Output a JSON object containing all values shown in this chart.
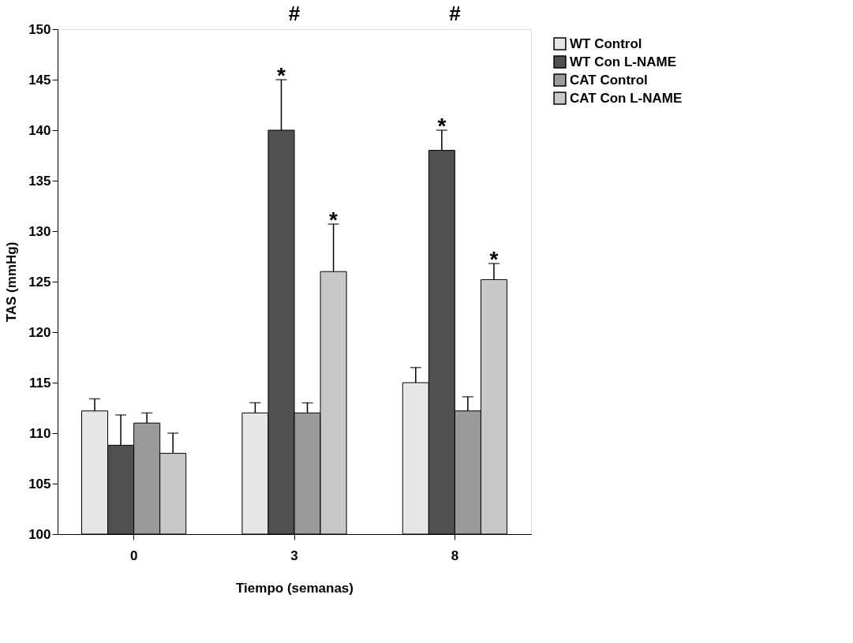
{
  "chart_data": {
    "type": "bar",
    "xlabel": "Tiempo (semanas)",
    "ylabel": "TAS (mmHg)",
    "categories": [
      "0",
      "3",
      "8"
    ],
    "series": [
      {
        "name": "WT Control",
        "color": "#e6e6e6",
        "values": [
          112.2,
          112,
          115
        ],
        "errors": [
          [
            112.2,
            113.4
          ],
          [
            112,
            113
          ],
          [
            115,
            116.5
          ]
        ]
      },
      {
        "name": "WT Con L-NAME",
        "color": "#505050",
        "values": [
          108.8,
          140,
          138
        ],
        "errors": [
          [
            108.8,
            111.8
          ],
          [
            140,
            145
          ],
          [
            138,
            140
          ]
        ]
      },
      {
        "name": "CAT Control",
        "color": "#9a9a9a",
        "values": [
          111,
          112,
          112.2
        ],
        "errors": [
          [
            111,
            112
          ],
          [
            112,
            113
          ],
          [
            112.2,
            113.6
          ]
        ]
      },
      {
        "name": "CAT Con L-NAME",
        "color": "#c8c8c8",
        "values": [
          108,
          126,
          125.2
        ],
        "errors": [
          [
            108,
            110
          ],
          [
            126,
            130.7
          ],
          [
            125.2,
            126.8
          ]
        ]
      }
    ],
    "ylim": [
      100,
      150
    ],
    "yticks": [
      100,
      105,
      110,
      115,
      120,
      125,
      130,
      135,
      140,
      145,
      150
    ],
    "grid": false,
    "legend": "right",
    "annotations": [
      {
        "text": "*",
        "x": "3",
        "y": 140
      },
      {
        "text": "*",
        "x": "3",
        "y": 126
      },
      {
        "text": "*",
        "x": "8",
        "y": 138
      },
      {
        "text": "*",
        "x": "8",
        "y": 125.2
      },
      "#",
      "#"
    ]
  }
}
